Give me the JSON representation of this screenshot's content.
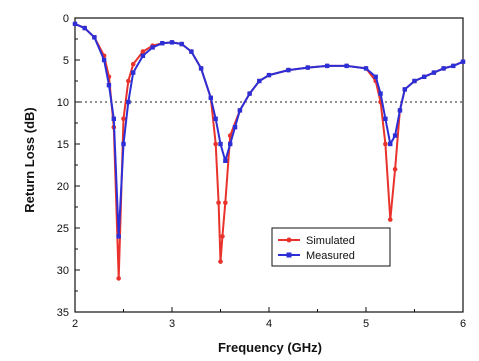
{
  "chart_data": {
    "type": "line",
    "xlabel": "Frequency (GHz)",
    "ylabel": "Return Loss (dB)",
    "xlim": [
      2,
      6
    ],
    "ylim": [
      0,
      35
    ],
    "y_inverted": true,
    "x_ticks": [
      "2",
      "3",
      "4",
      "5",
      "6"
    ],
    "y_ticks": [
      "0",
      "5",
      "10",
      "15",
      "20",
      "25",
      "30",
      "35"
    ],
    "reference_line": {
      "y": 10,
      "style": "dotted"
    },
    "legend": {
      "position": "lower-right-inside",
      "entries": [
        "Simulated",
        "Measured"
      ]
    },
    "grid": false,
    "series": [
      {
        "name": "Simulated",
        "color": "#e8322b",
        "marker": "circle",
        "points": [
          [
            2.0,
            0.7
          ],
          [
            2.1,
            1.2
          ],
          [
            2.2,
            2.3
          ],
          [
            2.3,
            4.5
          ],
          [
            2.35,
            7.0
          ],
          [
            2.4,
            13.0
          ],
          [
            2.45,
            31.0
          ],
          [
            2.5,
            12.0
          ],
          [
            2.55,
            7.5
          ],
          [
            2.6,
            5.5
          ],
          [
            2.7,
            4.0
          ],
          [
            2.8,
            3.3
          ],
          [
            2.9,
            3.0
          ],
          [
            3.0,
            2.9
          ],
          [
            3.1,
            3.1
          ],
          [
            3.2,
            4.0
          ],
          [
            3.3,
            6.0
          ],
          [
            3.4,
            9.5
          ],
          [
            3.45,
            15.0
          ],
          [
            3.48,
            22.0
          ],
          [
            3.5,
            29.0
          ],
          [
            3.52,
            26.0
          ],
          [
            3.55,
            22.0
          ],
          [
            3.6,
            14.0
          ],
          [
            3.7,
            11.0
          ],
          [
            3.8,
            9.0
          ],
          [
            3.9,
            7.5
          ],
          [
            4.0,
            6.8
          ],
          [
            4.2,
            6.2
          ],
          [
            4.4,
            5.9
          ],
          [
            4.6,
            5.7
          ],
          [
            4.8,
            5.7
          ],
          [
            5.0,
            6.0
          ],
          [
            5.1,
            7.5
          ],
          [
            5.15,
            10.0
          ],
          [
            5.2,
            15.0
          ],
          [
            5.25,
            24.0
          ],
          [
            5.3,
            18.0
          ],
          [
            5.35,
            11.0
          ],
          [
            5.4,
            8.5
          ],
          [
            5.5,
            7.5
          ],
          [
            5.6,
            7.0
          ],
          [
            5.7,
            6.5
          ],
          [
            5.8,
            6.0
          ],
          [
            5.9,
            5.7
          ],
          [
            6.0,
            5.2
          ]
        ]
      },
      {
        "name": "Measured",
        "color": "#2d2fd6",
        "marker": "square",
        "points": [
          [
            2.0,
            0.7
          ],
          [
            2.1,
            1.2
          ],
          [
            2.2,
            2.3
          ],
          [
            2.3,
            5.0
          ],
          [
            2.35,
            8.0
          ],
          [
            2.4,
            12.0
          ],
          [
            2.45,
            26.0
          ],
          [
            2.5,
            15.0
          ],
          [
            2.55,
            10.0
          ],
          [
            2.6,
            6.5
          ],
          [
            2.7,
            4.5
          ],
          [
            2.8,
            3.5
          ],
          [
            2.9,
            3.0
          ],
          [
            3.0,
            2.9
          ],
          [
            3.1,
            3.1
          ],
          [
            3.2,
            4.0
          ],
          [
            3.3,
            6.0
          ],
          [
            3.4,
            9.5
          ],
          [
            3.45,
            12.0
          ],
          [
            3.5,
            15.0
          ],
          [
            3.55,
            17.0
          ],
          [
            3.6,
            15.0
          ],
          [
            3.65,
            13.0
          ],
          [
            3.7,
            11.0
          ],
          [
            3.8,
            9.0
          ],
          [
            3.9,
            7.5
          ],
          [
            4.0,
            6.8
          ],
          [
            4.2,
            6.2
          ],
          [
            4.4,
            5.9
          ],
          [
            4.6,
            5.7
          ],
          [
            4.8,
            5.7
          ],
          [
            5.0,
            6.0
          ],
          [
            5.1,
            7.0
          ],
          [
            5.15,
            9.0
          ],
          [
            5.2,
            12.0
          ],
          [
            5.25,
            15.0
          ],
          [
            5.3,
            14.0
          ],
          [
            5.35,
            11.0
          ],
          [
            5.4,
            8.5
          ],
          [
            5.5,
            7.5
          ],
          [
            5.6,
            7.0
          ],
          [
            5.7,
            6.5
          ],
          [
            5.8,
            6.0
          ],
          [
            5.9,
            5.7
          ],
          [
            6.0,
            5.2
          ]
        ]
      }
    ]
  }
}
